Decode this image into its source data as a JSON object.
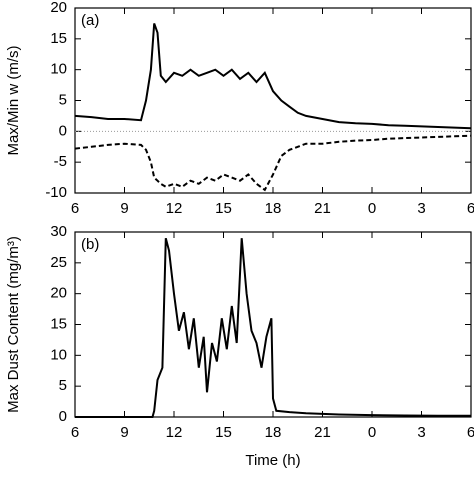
{
  "chart_data": [
    {
      "type": "line",
      "annotation": "(a)",
      "ylabel": "Max/Min w (m/s)",
      "x": [
        6,
        7,
        8,
        9,
        10,
        10.3,
        10.6,
        10.8,
        11,
        11.2,
        11.5,
        12,
        12.5,
        13,
        13.5,
        14,
        14.5,
        15,
        15.5,
        16,
        16.5,
        17,
        17.5,
        18,
        18.5,
        19,
        19.5,
        20,
        21,
        22,
        23,
        24,
        25,
        26,
        27,
        28,
        29,
        30
      ],
      "series": [
        {
          "color": "#000000",
          "dash": "solid",
          "values": [
            2.5,
            2.3,
            2.0,
            2.0,
            1.8,
            5,
            10,
            17.5,
            16,
            9,
            8,
            9.5,
            9,
            10,
            9,
            9.5,
            10,
            9,
            10,
            8.5,
            9.5,
            8,
            9.5,
            6.5,
            5,
            4,
            3,
            2.5,
            2,
            1.5,
            1.3,
            1.2,
            1,
            0.9,
            0.8,
            0.7,
            0.6,
            0.5
          ]
        },
        {
          "color": "#000000",
          "dash": "dashed",
          "values": [
            -2.8,
            -2.5,
            -2.2,
            -2,
            -2.2,
            -3,
            -5,
            -7.5,
            -8,
            -8.5,
            -9,
            -8.5,
            -9,
            -8,
            -8.5,
            -7.5,
            -8,
            -7,
            -7.5,
            -8,
            -7,
            -8.5,
            -9.5,
            -7,
            -4,
            -3,
            -2.5,
            -2,
            -2,
            -1.7,
            -1.5,
            -1.4,
            -1.2,
            -1.1,
            -1,
            -0.9,
            -0.8,
            -0.7
          ]
        }
      ],
      "reference_line": 0,
      "xlim": [
        6,
        30
      ],
      "xticks": [
        6,
        9,
        12,
        15,
        18,
        21,
        {
          "value": 24,
          "label": "0"
        },
        {
          "value": 27,
          "label": "3"
        },
        {
          "value": 30,
          "label": "6"
        }
      ],
      "ylim": [
        -10,
        20
      ],
      "yticks": [
        -10,
        -5,
        0,
        5,
        10,
        15,
        20
      ]
    },
    {
      "type": "line",
      "annotation": "(b)",
      "ylabel": "Max Dust Content (mg/m³)",
      "xlabel": "Time (h)",
      "x": [
        6,
        8,
        10,
        10.7,
        10.8,
        11,
        11.3,
        11.5,
        11.7,
        12,
        12.3,
        12.6,
        12.9,
        13.2,
        13.5,
        13.8,
        14,
        14.3,
        14.6,
        14.9,
        15.2,
        15.5,
        15.8,
        16.1,
        16.4,
        16.7,
        17,
        17.3,
        17.6,
        17.9,
        18,
        18.2,
        19,
        20,
        22,
        24,
        26,
        28,
        30
      ],
      "series": [
        {
          "color": "#000000",
          "dash": "solid",
          "values": [
            0,
            0,
            0,
            0,
            1,
            6,
            8,
            29,
            27,
            20,
            14,
            17,
            11,
            16,
            8,
            13,
            4,
            12,
            9,
            16,
            11,
            18,
            12,
            29,
            20,
            14,
            12,
            8,
            13,
            16,
            3,
            1,
            0.8,
            0.6,
            0.4,
            0.3,
            0.25,
            0.2,
            0.2
          ]
        }
      ],
      "xlim": [
        6,
        30
      ],
      "xticks": [
        6,
        9,
        12,
        15,
        18,
        21,
        {
          "value": 24,
          "label": "0"
        },
        {
          "value": 27,
          "label": "3"
        },
        {
          "value": 30,
          "label": "6"
        }
      ],
      "ylim": [
        0,
        30
      ],
      "yticks": [
        0,
        5,
        10,
        15,
        20,
        25,
        30
      ]
    }
  ]
}
